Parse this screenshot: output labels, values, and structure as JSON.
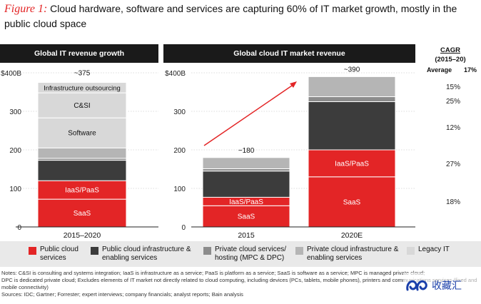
{
  "figure": {
    "label": "Figure 1:",
    "title": "Cloud hardware, software and services are capturing 60% of IT market growth, mostly in the public cloud space"
  },
  "colors": {
    "red": "#e32526",
    "dark": "#3c3c3c",
    "mid": "#8c8c8c",
    "light": "#b5b5b5",
    "pale": "#d8d8d8",
    "header_bg": "#1a1a1a",
    "legend_bg": "#e9e9e9"
  },
  "cagr": {
    "header": "CAGR",
    "period": "(2015–20)",
    "average_label": "Average",
    "average_value": "17%",
    "values": [
      "15%",
      "25%",
      "12%",
      "27%",
      "18%"
    ]
  },
  "legend": [
    {
      "label": "Public cloud services",
      "color": "#e32526"
    },
    {
      "label": "Public cloud infrastructure & enabling services",
      "color": "#3c3c3c"
    },
    {
      "label": "Private cloud services/ hosting (MPC & DPC)",
      "color": "#8c8c8c"
    },
    {
      "label": "Private cloud infrastructure & enabling services",
      "color": "#b5b5b5"
    },
    {
      "label": "Legacy IT",
      "color": "#d8d8d8"
    }
  ],
  "notes": [
    "Notes: C&SI is consulting and systems integration; IaaS is infrastructure as a service; PaaS is platform as a service; SaaS is software as a service; MPC is managed private cloud;",
    "DPC is dedicated private cloud; Excludes elements of IT market not directly related to cloud computing, including devices (PCs, tablets, mobile phones), printers and communications services (fixed and mobile connectivity)",
    "Sources: IDC; Gartner; Forrester; expert interviews; company financials; analyst reports; Bain analysis"
  ],
  "watermark": "收藏汇",
  "chart_data": [
    {
      "type": "bar",
      "title": "Global IT revenue growth",
      "ylim": [
        0,
        400
      ],
      "yticks": [
        "$400B",
        "300",
        "200",
        "100",
        "0"
      ],
      "categories": [
        "2015–2020"
      ],
      "total_label": "~375",
      "segments": [
        {
          "name": "SaaS",
          "value": 72,
          "color": "#e32526",
          "label": "SaaS"
        },
        {
          "name": "IaaS/PaaS",
          "value": 48,
          "color": "#e32526",
          "label": "IaaS/PaaS"
        },
        {
          "name": "Public cloud infrastructure & enabling services",
          "value": 53,
          "color": "#3c3c3c",
          "label": ""
        },
        {
          "name": "Private cloud services/hosting",
          "value": 5,
          "color": "#8c8c8c",
          "label": ""
        },
        {
          "name": "Private cloud infrastructure & enabling services",
          "value": 27,
          "color": "#b5b5b5",
          "label": ""
        },
        {
          "name": "Software",
          "value": 78,
          "color": "#d8d8d8",
          "label": "Software"
        },
        {
          "name": "C&SI",
          "value": 65,
          "color": "#d8d8d8",
          "label": "C&SI"
        },
        {
          "name": "Infrastructure outsourcing",
          "value": 27,
          "color": "#d8d8d8",
          "label": "Infrastructure outsourcing"
        }
      ]
    },
    {
      "type": "bar",
      "title": "Global cloud IT market revenue",
      "ylim": [
        0,
        400
      ],
      "yticks": [
        "$400B",
        "300",
        "200",
        "100",
        "0"
      ],
      "categories": [
        "2015",
        "2020E"
      ],
      "totals": [
        "~180",
        "~390"
      ],
      "series": [
        {
          "name": "SaaS",
          "values": [
            55,
            130
          ],
          "color": "#e32526",
          "label": "SaaS"
        },
        {
          "name": "IaaS/PaaS",
          "values": [
            22,
            70
          ],
          "color": "#e32526",
          "label": "IaaS/PaaS"
        },
        {
          "name": "Public cloud infrastructure & enabling services",
          "values": [
            68,
            125
          ],
          "color": "#3c3c3c",
          "label": ""
        },
        {
          "name": "Private cloud services/hosting",
          "values": [
            6,
            13
          ],
          "color": "#8c8c8c",
          "label": ""
        },
        {
          "name": "Private cloud infrastructure & enabling services",
          "values": [
            29,
            52
          ],
          "color": "#b5b5b5",
          "label": ""
        }
      ]
    }
  ]
}
